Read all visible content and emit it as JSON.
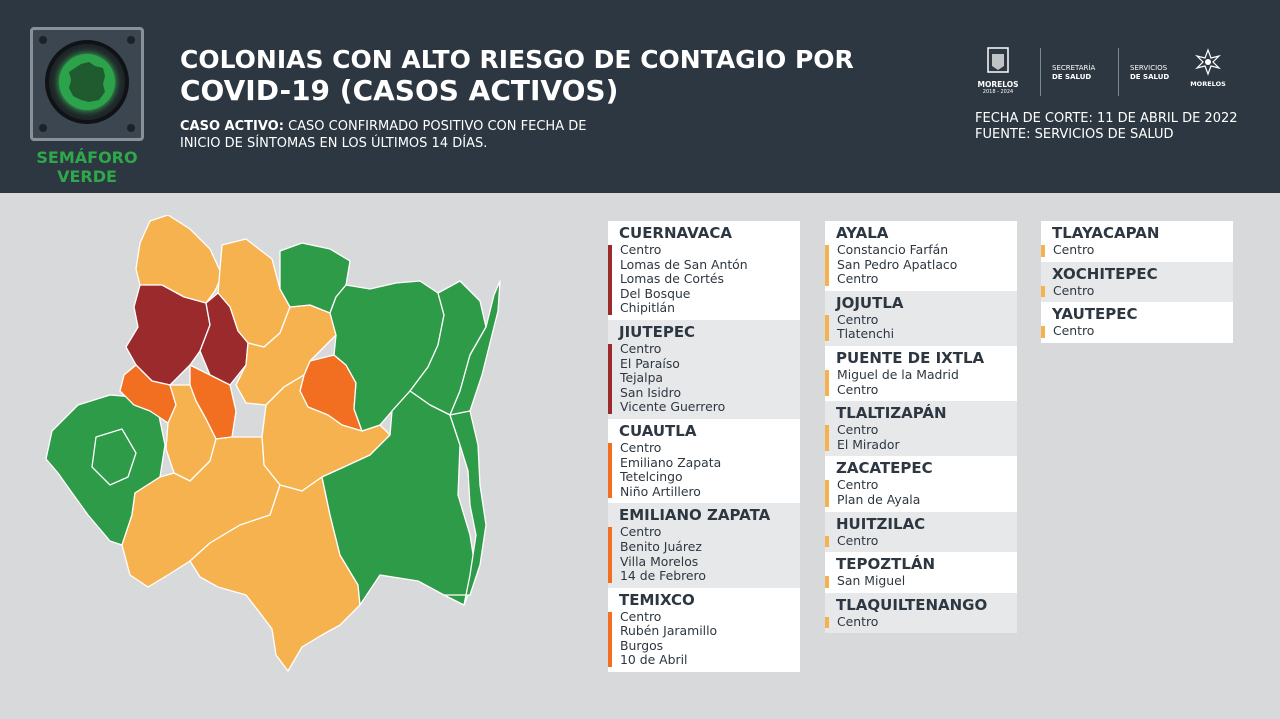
{
  "header": {
    "title_line1": "COLONIAS CON ALTO RIESGO DE CONTAGIO POR",
    "title_line2": "COVID-19 (CASOS ACTIVOS)",
    "definition_label": "CASO ACTIVO:",
    "definition_text_1": " CASO CONFIRMADO POSITIVO CON FECHA DE",
    "definition_text_2": "INICIO DE SÍNTOMAS EN LOS ÚLTIMOS 14 DÍAS.",
    "semaforo_line1": "SEMÁFORO",
    "semaforo_line2": "VERDE",
    "fecha": "FECHA DE CORTE: 11 DE ABRIL DE 2022",
    "fuente": "FUENTE: SERVICIOS DE SALUD",
    "logo_morelos": "MORELOS",
    "logo_morelos_years": "2018 - 2024",
    "logo_secretaria_1": "SECRETARÍA",
    "logo_secretaria_2": "DE SALUD",
    "logo_servicios_1": "SERVICIOS",
    "logo_servicios_2": "DE SALUD",
    "logo_morelos2": "MORELOS"
  },
  "colors": {
    "header_bg": "#2d3741",
    "green": "#2e9b48",
    "yellow": "#f6b24f",
    "orange": "#f26f21",
    "red": "#9b2a2d"
  },
  "columns": [
    [
      {
        "name": "CUERNAVACA",
        "color": "#9b2a2d",
        "colonias": [
          "Centro",
          "Lomas de San Antón",
          "Lomas de Cortés",
          "Del Bosque",
          "Chipitlán"
        ]
      },
      {
        "name": "JIUTEPEC",
        "color": "#9b2a2d",
        "colonias": [
          "Centro",
          "El Paraíso",
          "Tejalpa",
          "San Isidro",
          "Vicente Guerrero"
        ]
      },
      {
        "name": "CUAUTLA",
        "color": "#f26f21",
        "colonias": [
          "Centro",
          "Emiliano Zapata",
          "Tetelcingo",
          "Niño Artillero"
        ]
      },
      {
        "name": "EMILIANO ZAPATA",
        "color": "#f26f21",
        "colonias": [
          "Centro",
          "Benito Juárez",
          "Villa Morelos",
          "14 de Febrero"
        ]
      },
      {
        "name": "TEMIXCO",
        "color": "#f26f21",
        "colonias": [
          "Centro",
          "Rubén Jaramillo",
          "Burgos",
          "10 de Abril"
        ]
      }
    ],
    [
      {
        "name": "AYALA",
        "color": "#f6b24f",
        "colonias": [
          "Constancio Farfán",
          "San Pedro Apatlaco",
          "Centro"
        ]
      },
      {
        "name": "JOJUTLA",
        "color": "#f6b24f",
        "colonias": [
          "Centro",
          "Tlatenchi"
        ]
      },
      {
        "name": "PUENTE DE IXTLA",
        "color": "#f6b24f",
        "colonias": [
          "Miguel de la Madrid",
          "Centro"
        ]
      },
      {
        "name": "TLALTIZAPÁN",
        "color": "#f6b24f",
        "colonias": [
          "Centro",
          "El Mirador"
        ]
      },
      {
        "name": "ZACATEPEC",
        "color": "#f6b24f",
        "colonias": [
          "Centro",
          "Plan de Ayala"
        ]
      },
      {
        "name": "HUITZILAC",
        "color": "#f6b24f",
        "colonias": [
          "Centro"
        ]
      },
      {
        "name": "TEPOZTLÁN",
        "color": "#f6b24f",
        "colonias": [
          "San Miguel"
        ]
      },
      {
        "name": "TLAQUILTENANGO",
        "color": "#f6b24f",
        "colonias": [
          "Centro"
        ]
      }
    ],
    [
      {
        "name": "TLAYACAPAN",
        "color": "#f6b24f",
        "colonias": [
          "Centro"
        ]
      },
      {
        "name": "XOCHITEPEC",
        "color": "#f6b24f",
        "colonias": [
          "Centro"
        ]
      },
      {
        "name": "YAUTEPEC",
        "color": "#f6b24f",
        "colonias": [
          "Centro"
        ]
      }
    ]
  ]
}
